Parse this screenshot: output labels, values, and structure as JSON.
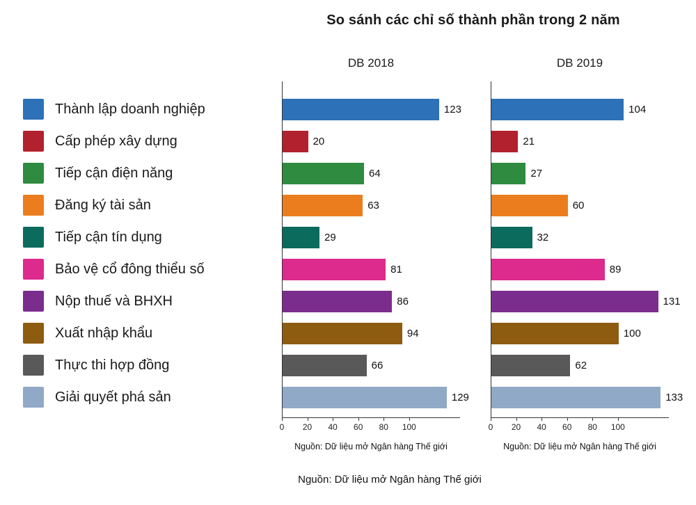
{
  "title": "So sánh các chỉ số thành phần trong 2 năm",
  "footer_source": "Nguồn: Dữ liệu mở Ngân hàng Thế giới",
  "chart_data": {
    "type": "bar",
    "orientation": "horizontal",
    "title": "So sánh các chỉ số thành phần trong 2 năm",
    "legend_position": "left",
    "grid": false,
    "xlim": [
      0,
      140
    ],
    "xticks": [
      0,
      20,
      40,
      60,
      80,
      100
    ],
    "categories": [
      "Thành lập doanh nghiệp",
      "Cấp phép xây dựng",
      "Tiếp cận điện năng",
      "Đăng ký tài sản",
      "Tiếp cận tín dụng",
      "Bảo vệ cổ đông thiểu số",
      "Nộp thuế và BHXH",
      "Xuất nhập khẩu",
      "Thực thi hợp đồng",
      "Giải quyết phá sản"
    ],
    "colors": [
      "#2d71b8",
      "#b2212e",
      "#2e8b40",
      "#ec7d1f",
      "#0b6b5d",
      "#dd2a8d",
      "#7b2d8e",
      "#8e5c10",
      "#595959",
      "#90a9c6"
    ],
    "series": [
      {
        "name": "DB 2018",
        "values": [
          123,
          20,
          64,
          63,
          29,
          81,
          86,
          94,
          66,
          129
        ],
        "source": "Nguồn: Dữ liệu mở Ngân hàng Thế giới"
      },
      {
        "name": "DB 2019",
        "values": [
          104,
          21,
          27,
          60,
          32,
          89,
          131,
          100,
          62,
          133
        ],
        "source": "Nguồn: Dữ liệu mở Ngân hàng Thế giới"
      }
    ]
  }
}
